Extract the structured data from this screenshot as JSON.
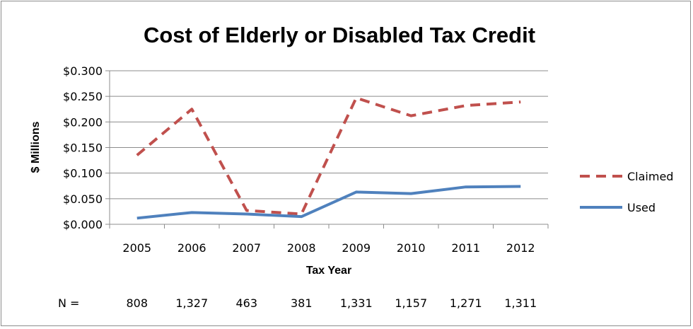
{
  "chart_data": {
    "type": "line",
    "title": "Cost of Elderly or Disabled Tax Credit",
    "xlabel": "Tax Year",
    "ylabel": "$ Millions",
    "categories": [
      "2005",
      "2006",
      "2007",
      "2008",
      "2009",
      "2010",
      "2011",
      "2012"
    ],
    "ylim": [
      0,
      0.3
    ],
    "yticks": [
      0,
      0.05,
      0.1,
      0.15,
      0.2,
      0.25,
      0.3
    ],
    "ytick_labels": [
      "$0.000",
      "$0.050",
      "$0.100",
      "$0.150",
      "$0.200",
      "$0.250",
      "$0.300"
    ],
    "grid": "horizontal",
    "legend_position": "right",
    "series": [
      {
        "name": "Claimed",
        "values": [
          0.135,
          0.225,
          0.027,
          0.02,
          0.247,
          0.212,
          0.232,
          0.239
        ],
        "color": "#c0504d",
        "dash": "dashed"
      },
      {
        "name": "Used",
        "values": [
          0.012,
          0.023,
          0.02,
          0.015,
          0.063,
          0.06,
          0.073,
          0.074
        ],
        "color": "#4f81bd",
        "dash": "solid"
      }
    ],
    "n_label": "N =",
    "n_values": [
      "808",
      "1,327",
      "463",
      "381",
      "1,331",
      "1,157",
      "1,271",
      "1,311"
    ]
  }
}
